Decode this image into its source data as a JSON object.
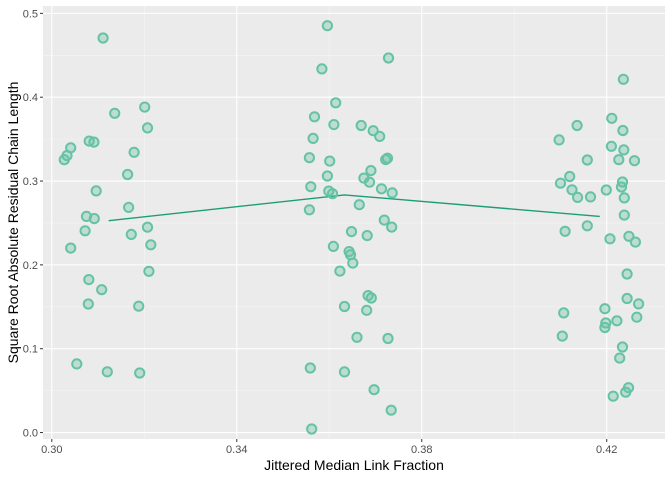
{
  "chart_data": {
    "type": "scatter",
    "title": "",
    "xlabel": "Jittered Median Link Fraction",
    "ylabel": "Square Root Absolute Residual Chain Length",
    "xlim": [
      0.2981,
      0.4326
    ],
    "ylim": [
      -0.0077,
      0.5088
    ],
    "x_ticks": [
      0.3,
      0.34,
      0.38,
      0.42
    ],
    "x_tick_labels": [
      "0.30",
      "0.34",
      "0.38",
      "0.42"
    ],
    "y_ticks": [
      0.0,
      0.1,
      0.2,
      0.3,
      0.4,
      0.5
    ],
    "y_tick_labels": [
      "0.0",
      "0.1",
      "0.2",
      "0.3",
      "0.4",
      "0.5"
    ],
    "grid": true,
    "legend": "none",
    "colors": {
      "panel_background": "#EBEBEB",
      "grid_major": "#FFFFFF",
      "grid_minor": "#F5F5F5",
      "point_stroke": "#66C2A5",
      "point_fill": "rgba(102,194,165,0.35)",
      "trend_line": "#1B9E77",
      "axis_text": "#4D4D4D",
      "axis_title": "#000000"
    },
    "series": [
      {
        "type": "scatter",
        "points": [
          [
            0.3111,
            0.4706
          ],
          [
            0.3136,
            0.3808
          ],
          [
            0.3201,
            0.3882
          ],
          [
            0.3207,
            0.3634
          ],
          [
            0.3081,
            0.3476
          ],
          [
            0.3091,
            0.3465
          ],
          [
            0.3041,
            0.3396
          ],
          [
            0.3033,
            0.3304
          ],
          [
            0.3027,
            0.3255
          ],
          [
            0.3178,
            0.3343
          ],
          [
            0.3164,
            0.3078
          ],
          [
            0.3096,
            0.2882
          ],
          [
            0.3166,
            0.2686
          ],
          [
            0.3075,
            0.2578
          ],
          [
            0.3092,
            0.2552
          ],
          [
            0.3072,
            0.2407
          ],
          [
            0.3207,
            0.2449
          ],
          [
            0.3172,
            0.2363
          ],
          [
            0.3214,
            0.224
          ],
          [
            0.3041,
            0.22
          ],
          [
            0.321,
            0.1923
          ],
          [
            0.308,
            0.1824
          ],
          [
            0.3108,
            0.1704
          ],
          [
            0.3079,
            0.1533
          ],
          [
            0.3188,
            0.1507
          ],
          [
            0.3054,
            0.0819
          ],
          [
            0.312,
            0.0724
          ],
          [
            0.319,
            0.071
          ],
          [
            0.3596,
            0.4853
          ],
          [
            0.3728,
            0.4468
          ],
          [
            0.3584,
            0.4338
          ],
          [
            0.3614,
            0.3933
          ],
          [
            0.3568,
            0.3766
          ],
          [
            0.361,
            0.3673
          ],
          [
            0.3669,
            0.3663
          ],
          [
            0.3695,
            0.3601
          ],
          [
            0.3709,
            0.3532
          ],
          [
            0.3565,
            0.3509
          ],
          [
            0.3557,
            0.3279
          ],
          [
            0.3726,
            0.3272
          ],
          [
            0.3601,
            0.3238
          ],
          [
            0.3722,
            0.3256
          ],
          [
            0.369,
            0.3124
          ],
          [
            0.3596,
            0.306
          ],
          [
            0.3675,
            0.3035
          ],
          [
            0.3687,
            0.2986
          ],
          [
            0.356,
            0.2932
          ],
          [
            0.3713,
            0.2907
          ],
          [
            0.3599,
            0.288
          ],
          [
            0.3607,
            0.2849
          ],
          [
            0.3736,
            0.2859
          ],
          [
            0.3665,
            0.2718
          ],
          [
            0.3557,
            0.2657
          ],
          [
            0.3719,
            0.2534
          ],
          [
            0.3735,
            0.2451
          ],
          [
            0.3648,
            0.2397
          ],
          [
            0.3682,
            0.2349
          ],
          [
            0.3609,
            0.2221
          ],
          [
            0.3643,
            0.2158
          ],
          [
            0.3646,
            0.2121
          ],
          [
            0.3651,
            0.2021
          ],
          [
            0.3623,
            0.1926
          ],
          [
            0.3684,
            0.1634
          ],
          [
            0.3691,
            0.1605
          ],
          [
            0.3633,
            0.1503
          ],
          [
            0.3681,
            0.1458
          ],
          [
            0.366,
            0.1136
          ],
          [
            0.3727,
            0.1122
          ],
          [
            0.3559,
            0.077
          ],
          [
            0.3633,
            0.0723
          ],
          [
            0.3697,
            0.0511
          ],
          [
            0.3734,
            0.0267
          ],
          [
            0.3562,
            0.0042
          ],
          [
            0.4236,
            0.4214
          ],
          [
            0.4211,
            0.3749
          ],
          [
            0.4136,
            0.3663
          ],
          [
            0.4235,
            0.3603
          ],
          [
            0.4097,
            0.3491
          ],
          [
            0.421,
            0.3415
          ],
          [
            0.4237,
            0.3372
          ],
          [
            0.4158,
            0.3251
          ],
          [
            0.4226,
            0.3255
          ],
          [
            0.426,
            0.3243
          ],
          [
            0.412,
            0.3054
          ],
          [
            0.41,
            0.2974
          ],
          [
            0.4234,
            0.2989
          ],
          [
            0.4232,
            0.2929
          ],
          [
            0.4125,
            0.2895
          ],
          [
            0.4199,
            0.2893
          ],
          [
            0.4137,
            0.2805
          ],
          [
            0.4165,
            0.2811
          ],
          [
            0.4238,
            0.2799
          ],
          [
            0.4238,
            0.2594
          ],
          [
            0.4158,
            0.2466
          ],
          [
            0.411,
            0.2401
          ],
          [
            0.4248,
            0.2341
          ],
          [
            0.4262,
            0.2272
          ],
          [
            0.4207,
            0.2311
          ],
          [
            0.4244,
            0.1891
          ],
          [
            0.4244,
            0.1599
          ],
          [
            0.4269,
            0.1534
          ],
          [
            0.4107,
            0.1427
          ],
          [
            0.4196,
            0.1477
          ],
          [
            0.4265,
            0.1376
          ],
          [
            0.4222,
            0.1333
          ],
          [
            0.4198,
            0.1307
          ],
          [
            0.4196,
            0.1253
          ],
          [
            0.4104,
            0.1151
          ],
          [
            0.4234,
            0.102
          ],
          [
            0.4228,
            0.0888
          ],
          [
            0.4247,
            0.0535
          ],
          [
            0.4241,
            0.0481
          ],
          [
            0.4214,
            0.0434
          ]
        ]
      },
      {
        "type": "line",
        "points": [
          [
            0.3123,
            0.2527
          ],
          [
            0.3633,
            0.2835
          ],
          [
            0.4185,
            0.2578
          ]
        ]
      }
    ]
  }
}
